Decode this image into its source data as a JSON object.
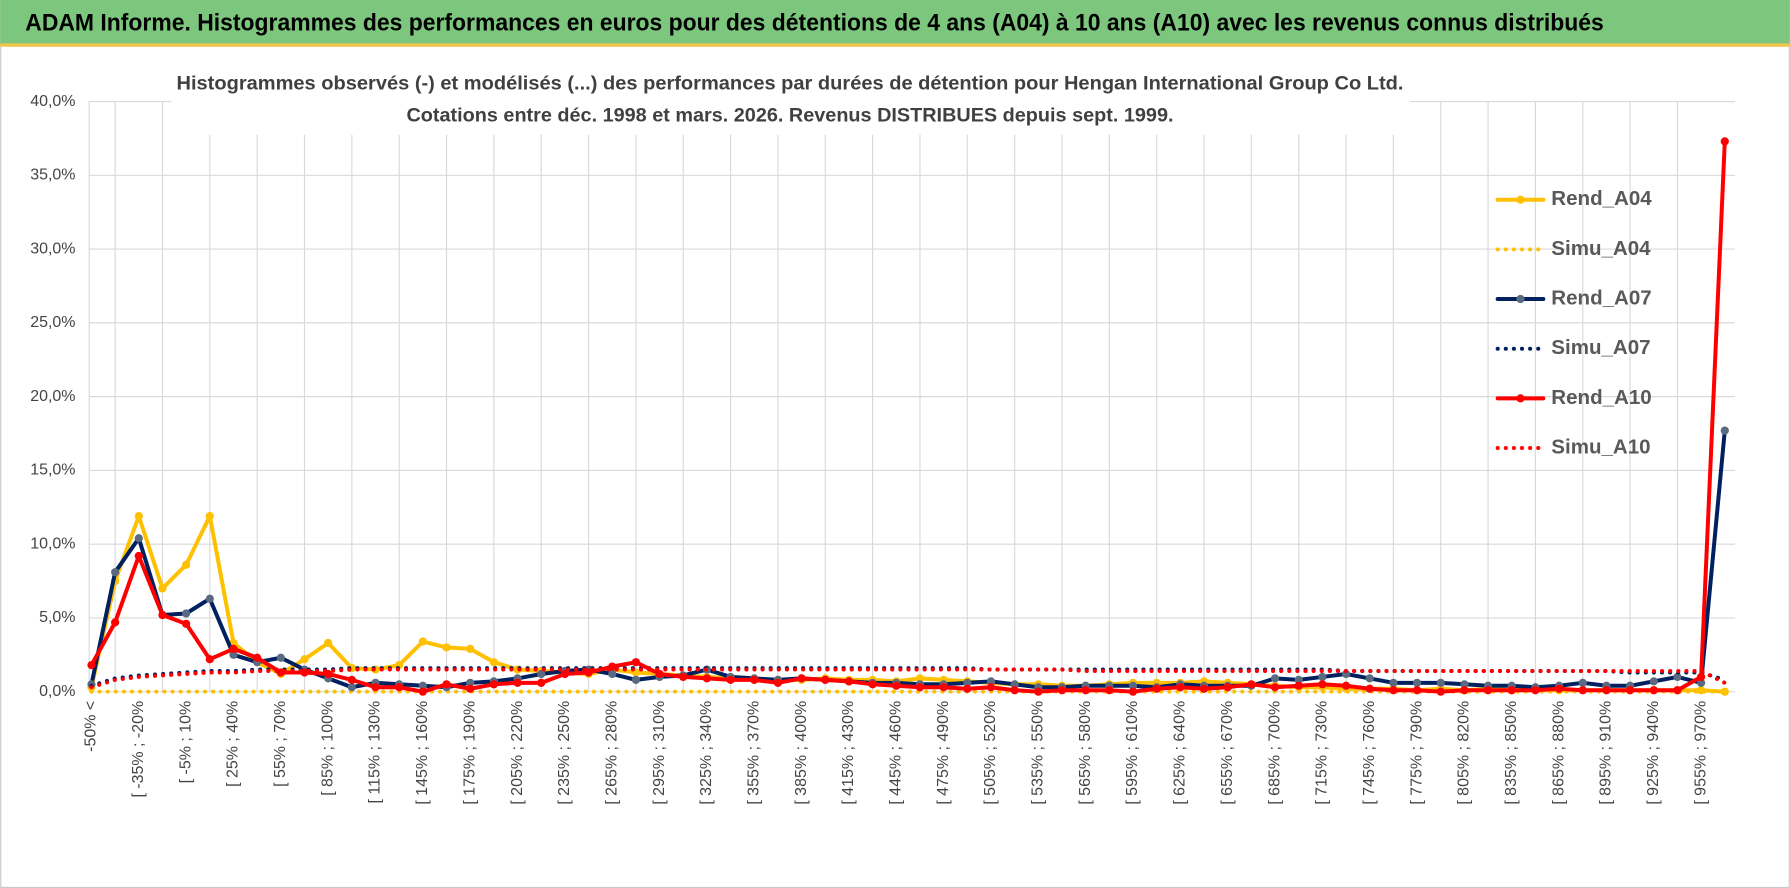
{
  "chart_data": {
    "type": "line",
    "title": "ADAM Informe. Histogrammes des performances en euros pour des détentions de 4 ans (A04) à 10 ans (A10) avec les revenus connus distribués",
    "subtitle": [
      "Histogrammes observés (-) et modélisés (...) des performances par durées de détention pour Hengan International Group Co Ltd.",
      "Cotations entre déc. 1998 et mars. 2026. Revenus DISTRIBUES depuis sept. 1999."
    ],
    "categories": [
      "-50% <",
      null,
      "[ -35% ; -20%",
      null,
      "[ -5% ; 10%",
      null,
      "[ 25% ; 40%",
      null,
      "[ 55% ; 70%",
      null,
      "[ 85% ; 100%",
      null,
      "[ 115% ; 130%",
      null,
      "[ 145% ; 160%",
      null,
      "[ 175% ; 190%",
      null,
      "[ 205% ; 220%",
      null,
      "[ 235% ; 250%",
      null,
      "[ 265% ; 280%",
      null,
      "[ 295% ; 310%",
      null,
      "[ 325% ; 340%",
      null,
      "[ 355% ; 370%",
      null,
      "[ 385% ; 400%",
      null,
      "[ 415% ; 430%",
      null,
      "[ 445% ; 460%",
      null,
      "[ 475% ; 490%",
      null,
      "[ 505% ; 520%",
      null,
      "[ 535% ; 550%",
      null,
      "[ 565% ; 580%",
      null,
      "[ 595% ; 610%",
      null,
      "[ 625% ; 640%",
      null,
      "[ 655% ; 670%",
      null,
      "[ 685% ; 700%",
      null,
      "[ 715% ; 730%",
      null,
      "[ 745% ; 760%",
      null,
      "[ 775% ; 790%",
      null,
      "[ 805% ; 820%",
      null,
      "[ 835% ; 850%",
      null,
      "[ 865% ; 880%",
      null,
      "[ 895% ; 910%",
      null,
      "[ 925% ; 940%",
      null,
      "[ 955% ; 970%",
      null
    ],
    "series": [
      {
        "name": "Rend_A04",
        "color": "#FFC000",
        "line_style": "solid",
        "markers": true,
        "values": [
          0.3,
          7.5,
          11.9,
          7.0,
          8.6,
          11.9,
          3.3,
          2.0,
          1.2,
          2.2,
          3.3,
          1.6,
          1.5,
          1.8,
          3.4,
          3.0,
          2.9,
          2.0,
          1.5,
          1.4,
          1.3,
          1.2,
          1.5,
          1.3,
          1.2,
          1.1,
          1.0,
          0.9,
          0.8,
          0.8,
          0.8,
          0.9,
          0.8,
          0.8,
          0.7,
          0.9,
          0.8,
          0.7,
          0.6,
          0.5,
          0.5,
          0.4,
          0.4,
          0.5,
          0.6,
          0.6,
          0.6,
          0.7,
          0.6,
          0.5,
          0.4,
          0.3,
          0.3,
          0.2,
          0.2,
          0.2,
          0.1,
          0.2,
          0.1,
          0.2,
          0.1,
          0.1,
          0.1,
          0.1,
          0.1,
          0.1,
          0.1,
          0.1,
          0.1,
          0.0
        ]
      },
      {
        "name": "Simu_A04",
        "color": "#FFC000",
        "line_style": "dotted",
        "markers": false,
        "values": [
          0,
          0,
          0,
          0,
          0,
          0,
          0,
          0,
          0,
          0,
          0,
          0,
          0,
          0,
          0,
          0,
          0,
          0,
          0,
          0,
          0,
          0,
          0,
          0,
          0,
          0,
          0,
          0,
          0,
          0,
          0,
          0,
          0,
          0,
          0,
          0,
          0,
          0,
          0,
          0,
          0,
          0,
          0,
          0,
          0,
          0,
          0,
          0,
          0,
          0,
          0,
          0,
          0,
          0,
          0,
          0,
          0,
          0,
          0,
          0,
          0,
          0,
          0,
          0,
          0,
          0,
          0,
          0,
          0,
          0
        ]
      },
      {
        "name": "Rend_A07",
        "color": "#002060",
        "marker_color": "#5A6A80",
        "line_style": "solid",
        "markers": true,
        "values": [
          0.5,
          8.1,
          10.4,
          5.2,
          5.3,
          6.3,
          2.5,
          2.0,
          2.3,
          1.5,
          0.9,
          0.3,
          0.6,
          0.5,
          0.4,
          0.3,
          0.6,
          0.7,
          0.9,
          1.2,
          1.4,
          1.5,
          1.2,
          0.8,
          1.0,
          1.1,
          1.5,
          1.0,
          0.9,
          0.8,
          0.9,
          0.8,
          0.7,
          0.6,
          0.6,
          0.5,
          0.5,
          0.6,
          0.7,
          0.5,
          0.3,
          0.3,
          0.4,
          0.4,
          0.4,
          0.3,
          0.5,
          0.4,
          0.4,
          0.4,
          0.9,
          0.8,
          1.0,
          1.2,
          0.9,
          0.6,
          0.6,
          0.6,
          0.5,
          0.4,
          0.4,
          0.3,
          0.4,
          0.6,
          0.4,
          0.4,
          0.7,
          1.0,
          0.6,
          17.7
        ]
      },
      {
        "name": "Simu_A07",
        "color": "#002060",
        "line_style": "dotted",
        "markers": false,
        "values": [
          0.4,
          0.9,
          1.1,
          1.2,
          1.3,
          1.4,
          1.4,
          1.5,
          1.5,
          1.5,
          1.5,
          1.6,
          1.6,
          1.6,
          1.6,
          1.6,
          1.6,
          1.6,
          1.6,
          1.6,
          1.6,
          1.6,
          1.6,
          1.6,
          1.6,
          1.6,
          1.6,
          1.6,
          1.6,
          1.6,
          1.6,
          1.6,
          1.6,
          1.6,
          1.6,
          1.6,
          1.6,
          1.6,
          1.5,
          1.5,
          1.5,
          1.5,
          1.5,
          1.5,
          1.5,
          1.5,
          1.5,
          1.5,
          1.5,
          1.5,
          1.5,
          1.5,
          1.5,
          1.4,
          1.4,
          1.4,
          1.4,
          1.4,
          1.4,
          1.4,
          1.4,
          1.4,
          1.4,
          1.4,
          1.4,
          1.3,
          1.3,
          1.3,
          1.3,
          0.8
        ]
      },
      {
        "name": "Rend_A10",
        "color": "#FF0000",
        "line_style": "solid",
        "markers": true,
        "values": [
          1.8,
          4.7,
          9.2,
          5.2,
          4.6,
          2.2,
          2.9,
          2.3,
          1.3,
          1.3,
          1.2,
          0.8,
          0.3,
          0.3,
          0.0,
          0.5,
          0.2,
          0.5,
          0.6,
          0.6,
          1.2,
          1.3,
          1.7,
          2.0,
          1.2,
          1.0,
          0.9,
          0.8,
          0.8,
          0.6,
          0.9,
          0.8,
          0.7,
          0.5,
          0.4,
          0.3,
          0.3,
          0.2,
          0.3,
          0.1,
          0.0,
          0.1,
          0.1,
          0.1,
          0.0,
          0.2,
          0.3,
          0.2,
          0.3,
          0.5,
          0.3,
          0.4,
          0.5,
          0.4,
          0.2,
          0.1,
          0.1,
          0.0,
          0.1,
          0.1,
          0.1,
          0.1,
          0.2,
          0.1,
          0.1,
          0.1,
          0.1,
          0.1,
          1.0,
          37.3
        ]
      },
      {
        "name": "Simu_A10",
        "color": "#FF0000",
        "line_style": "dotted",
        "markers": false,
        "values": [
          0.3,
          0.8,
          1.0,
          1.1,
          1.2,
          1.3,
          1.3,
          1.4,
          1.4,
          1.4,
          1.4,
          1.5,
          1.5,
          1.5,
          1.5,
          1.5,
          1.5,
          1.5,
          1.5,
          1.5,
          1.5,
          1.5,
          1.5,
          1.5,
          1.5,
          1.5,
          1.5,
          1.5,
          1.5,
          1.5,
          1.5,
          1.5,
          1.5,
          1.5,
          1.5,
          1.5,
          1.5,
          1.5,
          1.5,
          1.5,
          1.5,
          1.5,
          1.4,
          1.4,
          1.4,
          1.4,
          1.4,
          1.4,
          1.4,
          1.4,
          1.4,
          1.4,
          1.4,
          1.4,
          1.4,
          1.4,
          1.4,
          1.4,
          1.4,
          1.4,
          1.4,
          1.4,
          1.4,
          1.4,
          1.4,
          1.4,
          1.4,
          1.4,
          1.4,
          0.6
        ]
      }
    ],
    "ylim": [
      0,
      40
    ],
    "yticks": [
      {
        "value": 0,
        "label": "0,0%"
      },
      {
        "value": 5,
        "label": "5,0%"
      },
      {
        "value": 10,
        "label": "10,0%"
      },
      {
        "value": 15,
        "label": "15,0%"
      },
      {
        "value": 20,
        "label": "20,0%"
      },
      {
        "value": 25,
        "label": "25,0%"
      },
      {
        "value": 30,
        "label": "30,0%"
      },
      {
        "value": 35,
        "label": "35,0%"
      },
      {
        "value": 40,
        "label": "40,0%"
      }
    ],
    "grid": true,
    "legend": "right"
  }
}
